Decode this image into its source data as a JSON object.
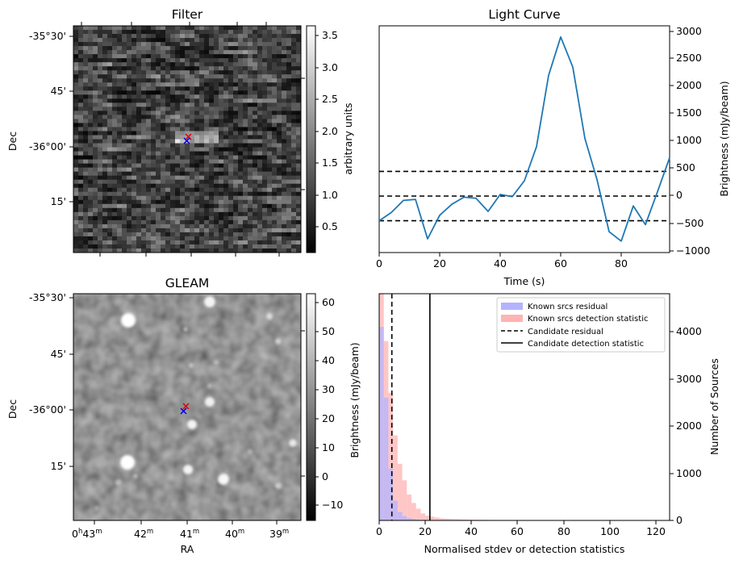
{
  "filter_panel": {
    "title": "Filter",
    "ylabel": "Dec",
    "dec_ticks": [
      "-35°30'",
      "45'",
      "-36°00'",
      "15'"
    ],
    "colorbar_label": "arbitrary units",
    "colorbar_ticks": [
      "0.5",
      "1.0",
      "1.5",
      "2.0",
      "2.5",
      "3.0",
      "3.5"
    ],
    "colormap": "grayscale"
  },
  "gleam_panel": {
    "title": "GLEAM",
    "ylabel": "Dec",
    "xlabel": "RA",
    "dec_ticks": [
      "-35°30'",
      "45'",
      "-36°00'",
      "15'"
    ],
    "ra_ticks": [
      {
        "main": "0",
        "h": "h",
        "val": "43",
        "unit": "m"
      },
      {
        "main": "",
        "h": "",
        "val": "42",
        "unit": "m"
      },
      {
        "main": "",
        "h": "",
        "val": "41",
        "unit": "m"
      },
      {
        "main": "",
        "h": "",
        "val": "40",
        "unit": "m"
      },
      {
        "main": "",
        "h": "",
        "val": "39",
        "unit": "m"
      }
    ],
    "colorbar_label": "Brightness (mJy/beam)",
    "colorbar_ticks": [
      "−10",
      "0",
      "10",
      "20",
      "30",
      "40",
      "50",
      "60"
    ],
    "colormap": "grayscale"
  },
  "light_curve_panel": {
    "title": "Light Curve",
    "xlabel": "Time (s)",
    "ylabel": "Brightness (mJy/beam)",
    "x_ticks": [
      "0",
      "20",
      "40",
      "60",
      "80"
    ],
    "y_ticks": [
      "−1000",
      "−500",
      "0",
      "500",
      "1000",
      "1500",
      "2000",
      "2500",
      "3000"
    ]
  },
  "histogram_panel": {
    "xlabel": "Normalised stdev or detection statistics",
    "ylabel": "Number of Sources",
    "x_ticks": [
      "0",
      "20",
      "40",
      "60",
      "80",
      "100",
      "120"
    ],
    "y_ticks": [
      "0",
      "1000",
      "2000",
      "3000",
      "4000"
    ],
    "legend": [
      {
        "label": "Known srcs residual",
        "kind": "patch",
        "color": "#b3b3ff"
      },
      {
        "label": "Known srcs detection statistic",
        "kind": "patch",
        "color": "#ffb3b3"
      },
      {
        "label": "Candidate residual",
        "kind": "dashed",
        "color": "#000000"
      },
      {
        "label": "Candidate detection statistic",
        "kind": "solid",
        "color": "#000000"
      }
    ]
  },
  "chart_data": [
    {
      "type": "line",
      "title": "Light Curve",
      "xlabel": "Time (s)",
      "ylabel": "Brightness (mJy/beam)",
      "xlim": [
        0,
        96
      ],
      "ylim": [
        -1000,
        3000
      ],
      "series": [
        {
          "x": [
            0,
            4,
            8,
            12,
            16,
            20,
            24,
            28,
            32,
            36,
            40,
            44,
            48,
            52,
            56,
            60,
            64,
            68,
            72,
            76,
            80,
            84,
            88,
            92,
            96
          ],
          "y": [
            -450,
            -300,
            -80,
            -60,
            -780,
            -350,
            -150,
            -20,
            -40,
            -280,
            30,
            -10,
            280,
            900,
            2200,
            2900,
            2350,
            1050,
            300,
            -650,
            -820,
            -180,
            -520,
            80,
            700
          ],
          "color": "#1f77b4"
        }
      ],
      "hlines": [
        {
          "y": 450,
          "style": "dashed"
        },
        {
          "y": 0,
          "style": "dashed"
        },
        {
          "y": -450,
          "style": "dashed"
        }
      ]
    },
    {
      "type": "bar",
      "xlabel": "Normalised stdev or detection statistics",
      "ylabel": "Number of Sources",
      "xlim": [
        0,
        126
      ],
      "ylim": [
        0,
        4800
      ],
      "bin_width": 2,
      "series": [
        {
          "name": "Known srcs residual",
          "color": "#b3b3ff",
          "bin_starts": [
            0,
            2,
            4,
            6,
            8,
            10,
            12,
            14,
            16,
            18
          ],
          "counts": [
            4100,
            2600,
            1100,
            420,
            180,
            90,
            50,
            30,
            15,
            10
          ]
        },
        {
          "name": "Known srcs detection statistic",
          "color": "#ffb3b3",
          "bin_starts": [
            0,
            2,
            4,
            6,
            8,
            10,
            12,
            14,
            16,
            18,
            20,
            22,
            24,
            26,
            28,
            30,
            32,
            34,
            36,
            38,
            40,
            42,
            44,
            46,
            48,
            50,
            52,
            54,
            56,
            58,
            60,
            62,
            64,
            66,
            68,
            70,
            72,
            74,
            76,
            78,
            80,
            82,
            84,
            86,
            88,
            90,
            92,
            94,
            96,
            98,
            100,
            102,
            104,
            106,
            108,
            110,
            112,
            114,
            116,
            118,
            120
          ],
          "counts": [
            4800,
            3800,
            2700,
            1800,
            1200,
            850,
            550,
            370,
            250,
            150,
            100,
            80,
            60,
            45,
            38,
            32,
            28,
            24,
            20,
            18,
            16,
            14,
            12,
            11,
            10,
            9,
            8,
            8,
            7,
            6,
            6,
            5,
            5,
            4,
            4,
            4,
            3,
            3,
            3,
            3,
            2,
            2,
            2,
            2,
            2,
            2,
            2,
            2,
            1,
            1,
            1,
            1,
            1,
            1,
            1,
            1,
            1,
            1,
            1,
            1,
            1
          ]
        }
      ],
      "vlines": [
        {
          "name": "Candidate residual",
          "x": 5.5,
          "style": "dashed"
        },
        {
          "name": "Candidate detection statistic",
          "x": 22,
          "style": "solid"
        }
      ]
    }
  ]
}
